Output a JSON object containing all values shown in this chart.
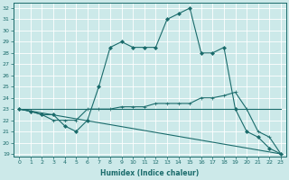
{
  "xlabel": "Humidex (Indice chaleur)",
  "xlim": [
    -0.5,
    23.5
  ],
  "ylim": [
    18.8,
    32.5
  ],
  "yticks": [
    19,
    20,
    21,
    22,
    23,
    24,
    25,
    26,
    27,
    28,
    29,
    30,
    31,
    32
  ],
  "xticks": [
    0,
    1,
    2,
    3,
    4,
    5,
    6,
    7,
    8,
    9,
    10,
    11,
    12,
    13,
    14,
    15,
    16,
    17,
    18,
    19,
    20,
    21,
    22,
    23
  ],
  "bg_color": "#cce9e9",
  "grid_color": "#b0d4d4",
  "line_color": "#1a6b6b",
  "lines": [
    {
      "x": [
        0,
        1,
        2,
        3,
        4,
        5,
        6,
        7,
        8,
        9,
        10,
        11,
        12,
        13,
        14,
        15,
        16,
        17,
        18,
        19,
        20,
        21,
        22,
        23
      ],
      "y": [
        23,
        22.8,
        22.5,
        22.5,
        21.5,
        21.0,
        22.0,
        25.0,
        28.5,
        29.0,
        28.5,
        28.5,
        28.5,
        31.0,
        31.5,
        32.0,
        28.0,
        28.0,
        28.5,
        23.0,
        21.0,
        20.5,
        19.5,
        19.0
      ],
      "marker": "D",
      "markersize": 2.0,
      "lw": 0.8
    },
    {
      "x": [
        0,
        1,
        2,
        3,
        4,
        5,
        6,
        7,
        8,
        9,
        10,
        11,
        12,
        13,
        14,
        15,
        16,
        17,
        18,
        19,
        20,
        21,
        22,
        23
      ],
      "y": [
        23,
        22.8,
        22.5,
        22.0,
        22.0,
        22.0,
        23.0,
        23.0,
        23.0,
        23.2,
        23.2,
        23.2,
        23.5,
        23.5,
        23.5,
        23.5,
        24.0,
        24.0,
        24.2,
        24.5,
        23.0,
        21.0,
        20.5,
        19.0
      ],
      "marker": "+",
      "markersize": 2.5,
      "lw": 0.8
    },
    {
      "x": [
        0,
        23
      ],
      "y": [
        23,
        23
      ],
      "marker": null,
      "markersize": 0,
      "lw": 0.8
    },
    {
      "x": [
        0,
        23
      ],
      "y": [
        23,
        19
      ],
      "marker": null,
      "markersize": 0,
      "lw": 0.8
    }
  ]
}
